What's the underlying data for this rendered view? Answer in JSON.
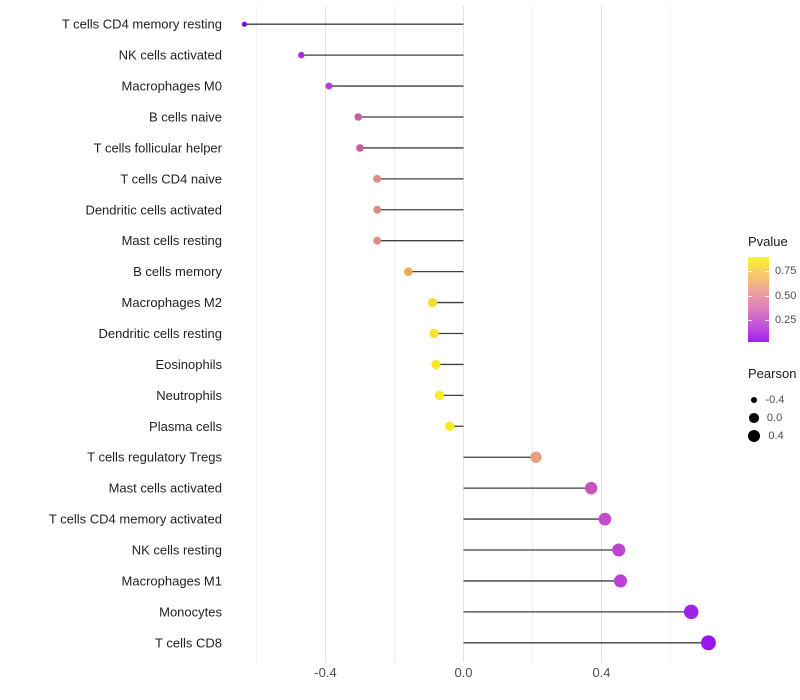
{
  "chart_data": {
    "type": "scatter",
    "subtype": "lollipop",
    "title": "",
    "xlabel": "",
    "ylabel": "",
    "xlim": [
      -0.685,
      0.755
    ],
    "x_major_ticks": [
      -0.4,
      0.0,
      0.4
    ],
    "x_tick_labels": [
      "-0.4",
      "0.0",
      "0.4"
    ],
    "x_minor_gridlines": [
      -0.6,
      -0.2,
      0.2,
      0.6
    ],
    "grid": true,
    "legend_position": "right",
    "rows": [
      {
        "label": "T cells CD4 memory resting",
        "pearson": -0.635,
        "pvalue_approx": 0.01,
        "color": "#840bd4"
      },
      {
        "label": "NK cells activated",
        "pearson": -0.47,
        "pvalue_approx": 0.1,
        "color": "#a52ede"
      },
      {
        "label": "Macrophages M0",
        "pearson": -0.39,
        "pvalue_approx": 0.16,
        "color": "#b53ed6"
      },
      {
        "label": "B cells naive",
        "pearson": -0.305,
        "pvalue_approx": 0.3,
        "color": "#cc5da6"
      },
      {
        "label": "T cells follicular helper",
        "pearson": -0.3,
        "pvalue_approx": 0.31,
        "color": "#c85c9e"
      },
      {
        "label": "T cells CD4 naive",
        "pearson": -0.25,
        "pvalue_approx": 0.45,
        "color": "#dd8e88"
      },
      {
        "label": "Dendritic cells activated",
        "pearson": -0.25,
        "pvalue_approx": 0.45,
        "color": "#dc8d87"
      },
      {
        "label": "Mast cells resting",
        "pearson": -0.25,
        "pvalue_approx": 0.45,
        "color": "#dd8e88"
      },
      {
        "label": "B cells memory",
        "pearson": -0.16,
        "pvalue_approx": 0.68,
        "color": "#eea958"
      },
      {
        "label": "Macrophages M2",
        "pearson": -0.09,
        "pvalue_approx": 0.76,
        "color": "#f2dd33"
      },
      {
        "label": "Dendritic cells resting",
        "pearson": -0.085,
        "pvalue_approx": 0.78,
        "color": "#f4e22e"
      },
      {
        "label": "Eosinophils",
        "pearson": -0.08,
        "pvalue_approx": 0.82,
        "color": "#f7e928"
      },
      {
        "label": "Neutrophils",
        "pearson": -0.07,
        "pvalue_approx": 0.84,
        "color": "#f8ec26"
      },
      {
        "label": "Plasma cells",
        "pearson": -0.04,
        "pvalue_approx": 0.82,
        "color": "#f6ea28"
      },
      {
        "label": "T cells regulatory  Tregs",
        "pearson": 0.21,
        "pvalue_approx": 0.55,
        "color": "#e89f80"
      },
      {
        "label": "Mast cells activated",
        "pearson": 0.37,
        "pvalue_approx": 0.33,
        "color": "#c854c0"
      },
      {
        "label": "T cells CD4 memory activated",
        "pearson": 0.41,
        "pvalue_approx": 0.3,
        "color": "#c34cca"
      },
      {
        "label": "NK cells resting",
        "pearson": 0.45,
        "pvalue_approx": 0.25,
        "color": "#bc44d1"
      },
      {
        "label": "Macrophages M1",
        "pearson": 0.455,
        "pvalue_approx": 0.24,
        "color": "#b941d5"
      },
      {
        "label": "Monocytes",
        "pearson": 0.66,
        "pvalue_approx": 0.08,
        "color": "#9e23e8"
      },
      {
        "label": "T cells CD8",
        "pearson": 0.71,
        "pvalue_approx": 0.04,
        "color": "#9a14ef"
      }
    ]
  },
  "legend": {
    "pvalue": {
      "title": "Pvalue",
      "tick_labels": [
        "0.75",
        "0.50",
        "0.25"
      ],
      "tick_values": [
        0.75,
        0.5,
        0.25
      ],
      "range": [
        0.026,
        0.893
      ],
      "gradient_bottom_to_top": [
        "#a21ff2",
        "#c355d6",
        "#dd80bd",
        "#eda29c",
        "#f6c96a",
        "#fbf722"
      ]
    },
    "pearson": {
      "title": "Pearson",
      "items": [
        {
          "label": "-0.4",
          "value": -0.4
        },
        {
          "label": "0.0",
          "value": 0.0
        },
        {
          "label": "0.4",
          "value": 0.4
        }
      ],
      "dot_color": "#000000"
    }
  },
  "colors": {
    "background": "#ffffff",
    "stem": "#3f3f3f",
    "grid_major": "#e2e2e2",
    "grid_minor": "#eeeeee",
    "x_tick_text": "#4d4d4d",
    "y_label_text": "#1f1f1f"
  }
}
